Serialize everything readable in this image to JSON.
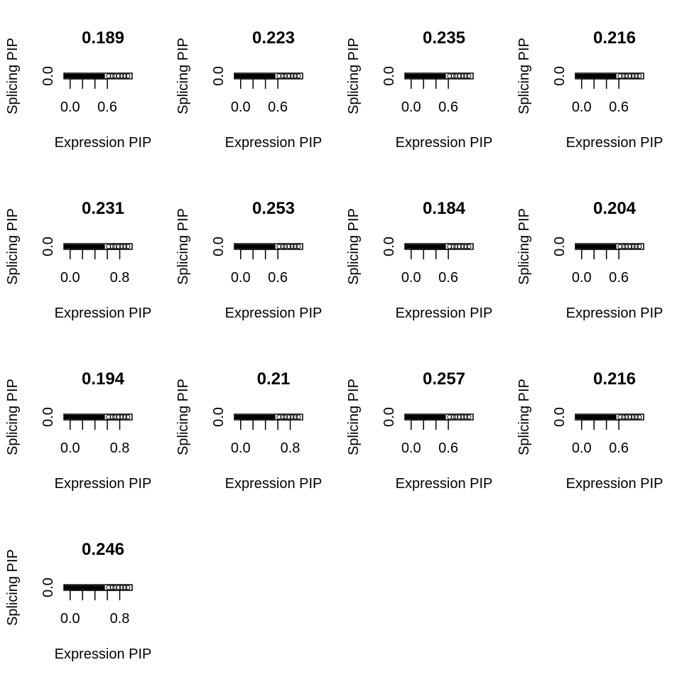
{
  "chart_data": [
    {
      "type": "scatter",
      "title": "0.189",
      "xlabel": "Expression PIP",
      "ylabel": "Splicing PIP",
      "xlim": [
        -0.1,
        1.0
      ],
      "ylim": [
        0.0,
        0.05
      ],
      "xticks": [
        "0.0",
        "0.6"
      ],
      "yticks": [
        "0.0"
      ],
      "x_max_label": 0.6
    },
    {
      "type": "scatter",
      "title": "0.223",
      "xlabel": "Expression PIP",
      "ylabel": "Splicing PIP",
      "xlim": [
        -0.1,
        1.0
      ],
      "ylim": [
        0.0,
        0.05
      ],
      "xticks": [
        "0.0",
        "0.6"
      ],
      "yticks": [
        "0.0"
      ],
      "x_max_label": 0.6
    },
    {
      "type": "scatter",
      "title": "0.235",
      "xlabel": "Expression PIP",
      "ylabel": "Splicing PIP",
      "xlim": [
        -0.1,
        1.0
      ],
      "ylim": [
        0.0,
        0.05
      ],
      "xticks": [
        "0.0",
        "0.6"
      ],
      "yticks": [
        "0.0"
      ],
      "x_max_label": 0.6
    },
    {
      "type": "scatter",
      "title": "0.216",
      "xlabel": "Expression PIP",
      "ylabel": "Splicing PIP",
      "xlim": [
        -0.1,
        1.0
      ],
      "ylim": [
        0.0,
        0.05
      ],
      "xticks": [
        "0.0",
        "0.6"
      ],
      "yticks": [
        "0.0"
      ],
      "x_max_label": 0.6
    },
    {
      "type": "scatter",
      "title": "0.231",
      "xlabel": "Expression PIP",
      "ylabel": "Splicing PIP",
      "xlim": [
        -0.1,
        1.0
      ],
      "ylim": [
        0.0,
        0.05
      ],
      "xticks": [
        "0.0",
        "0.8"
      ],
      "yticks": [
        "0.0"
      ],
      "x_max_label": 0.8
    },
    {
      "type": "scatter",
      "title": "0.253",
      "xlabel": "Expression PIP",
      "ylabel": "Splicing PIP",
      "xlim": [
        -0.1,
        1.0
      ],
      "ylim": [
        0.0,
        0.05
      ],
      "xticks": [
        "0.0",
        "0.6"
      ],
      "yticks": [
        "0.0"
      ],
      "x_max_label": 0.6
    },
    {
      "type": "scatter",
      "title": "0.184",
      "xlabel": "Expression PIP",
      "ylabel": "Splicing PIP",
      "xlim": [
        -0.1,
        1.0
      ],
      "ylim": [
        0.0,
        0.05
      ],
      "xticks": [
        "0.0",
        "0.6"
      ],
      "yticks": [
        "0.0"
      ],
      "x_max_label": 0.6
    },
    {
      "type": "scatter",
      "title": "0.204",
      "xlabel": "Expression PIP",
      "ylabel": "Splicing PIP",
      "xlim": [
        -0.1,
        1.0
      ],
      "ylim": [
        0.0,
        0.05
      ],
      "xticks": [
        "0.0",
        "0.6"
      ],
      "yticks": [
        "0.0"
      ],
      "x_max_label": 0.6
    },
    {
      "type": "scatter",
      "title": "0.194",
      "xlabel": "Expression PIP",
      "ylabel": "Splicing PIP",
      "xlim": [
        -0.1,
        1.0
      ],
      "ylim": [
        0.0,
        0.05
      ],
      "xticks": [
        "0.0",
        "0.8"
      ],
      "yticks": [
        "0.0"
      ],
      "x_max_label": 0.8
    },
    {
      "type": "scatter",
      "title": "0.21",
      "xlabel": "Expression PIP",
      "ylabel": "Splicing PIP",
      "xlim": [
        -0.1,
        1.0
      ],
      "ylim": [
        0.0,
        0.05
      ],
      "xticks": [
        "0.0",
        "0.8"
      ],
      "yticks": [
        "0.0"
      ],
      "x_max_label": 0.8
    },
    {
      "type": "scatter",
      "title": "0.257",
      "xlabel": "Expression PIP",
      "ylabel": "Splicing PIP",
      "xlim": [
        -0.1,
        1.0
      ],
      "ylim": [
        0.0,
        0.05
      ],
      "xticks": [
        "0.0",
        "0.6"
      ],
      "yticks": [
        "0.0"
      ],
      "x_max_label": 0.6
    },
    {
      "type": "scatter",
      "title": "0.216",
      "xlabel": "Expression PIP",
      "ylabel": "Splicing PIP",
      "xlim": [
        -0.1,
        1.0
      ],
      "ylim": [
        0.0,
        0.05
      ],
      "xticks": [
        "0.0",
        "0.6"
      ],
      "yticks": [
        "0.0"
      ],
      "x_max_label": 0.6
    },
    {
      "type": "scatter",
      "title": "0.246",
      "xlabel": "Expression PIP",
      "ylabel": "Splicing PIP",
      "xlim": [
        -0.1,
        1.0
      ],
      "ylim": [
        0.0,
        0.05
      ],
      "xticks": [
        "0.0",
        "0.8"
      ],
      "yticks": [
        "0.0"
      ],
      "x_max_label": 0.8
    }
  ],
  "colors": {
    "background": "#ffffff",
    "ink": "#000000"
  }
}
